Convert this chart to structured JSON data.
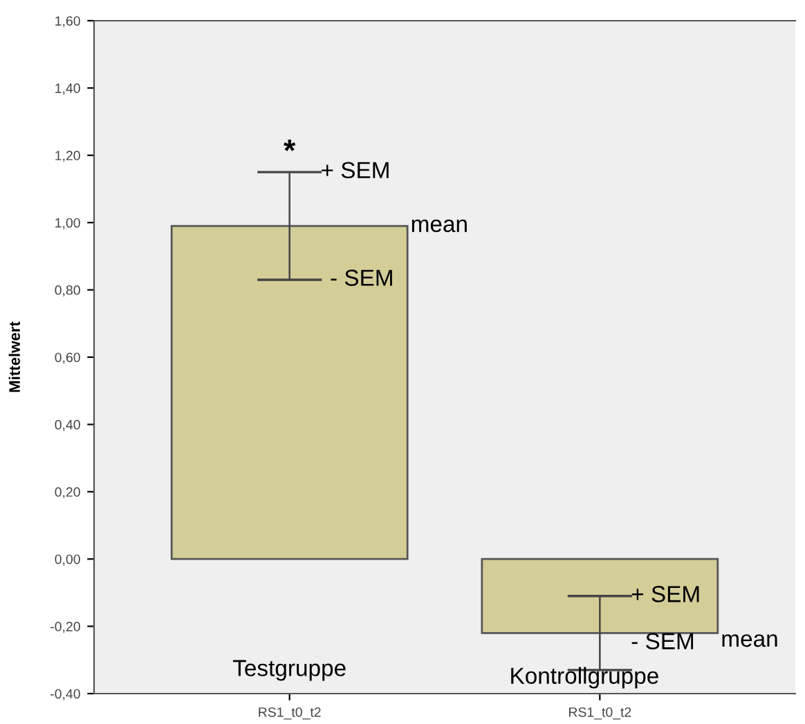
{
  "chart_data": {
    "type": "bar",
    "ylabel": "Mittelwert",
    "categories": [
      "RS1_t0_t2",
      "RS1_t0_t2"
    ],
    "values": [
      0.99,
      -0.22
    ],
    "errors": [
      0.16,
      0.11
    ],
    "color": "#d3cd98",
    "ylim": [
      -0.4,
      1.6
    ],
    "yticks": [
      {
        "value": -0.4,
        "label": "-0,40"
      },
      {
        "value": -0.2,
        "label": "-0,20"
      },
      {
        "value": 0,
        "label": "0,00"
      },
      {
        "value": 0.2,
        "label": "0,20"
      },
      {
        "value": 0.4,
        "label": "0,40"
      },
      {
        "value": 0.6,
        "label": "0,60"
      },
      {
        "value": 0.8,
        "label": "0,80"
      },
      {
        "value": 1.0,
        "label": "1,00"
      },
      {
        "value": 1.2,
        "label": "1,20"
      },
      {
        "value": 1.4,
        "label": "1,40"
      },
      {
        "value": 1.6,
        "label": "1,60"
      }
    ],
    "grid": false,
    "annotations": [
      "*",
      "+ SEM",
      "- SEM",
      "mean",
      "Testgruppe",
      "+ SEM",
      "- SEM",
      "mean",
      "Kontrollgruppe"
    ]
  }
}
